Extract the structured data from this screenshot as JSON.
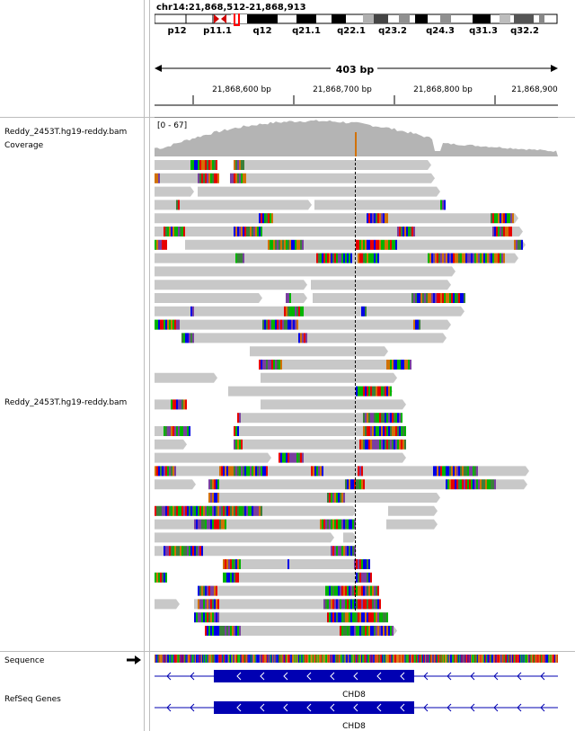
{
  "locus": "chr14:21,868,512-21,868,913",
  "ideogram": {
    "bands": [
      "p12",
      "p11.1",
      "q12",
      "q21.1",
      "q22.1",
      "q23.2",
      "q24.3",
      "q31.3",
      "q32.2"
    ]
  },
  "ruler": {
    "span": "403 bp",
    "ticks": [
      "21,868,600 bp",
      "21,868,700 bp",
      "21,868,800 bp",
      "21,868,900"
    ]
  },
  "tracks": {
    "coverage_name": "Reddy_2453T.hg19-reddy.bam Coverage",
    "coverage_range": "[0 - 67]",
    "alignment_name": "Reddy_2453T.hg19-reddy.bam",
    "sequence_name": "Sequence",
    "refseq_name": "RefSeq Genes",
    "gene_label_1": "CHD8",
    "gene_label_2": "CHD8"
  },
  "colors": {
    "read": "#c8c8c8",
    "coverage": "#b4b4b4",
    "gene": "#0000b2",
    "A": "#00b400",
    "C": "#0000e6",
    "G": "#d17105",
    "T": "#e60000"
  }
}
